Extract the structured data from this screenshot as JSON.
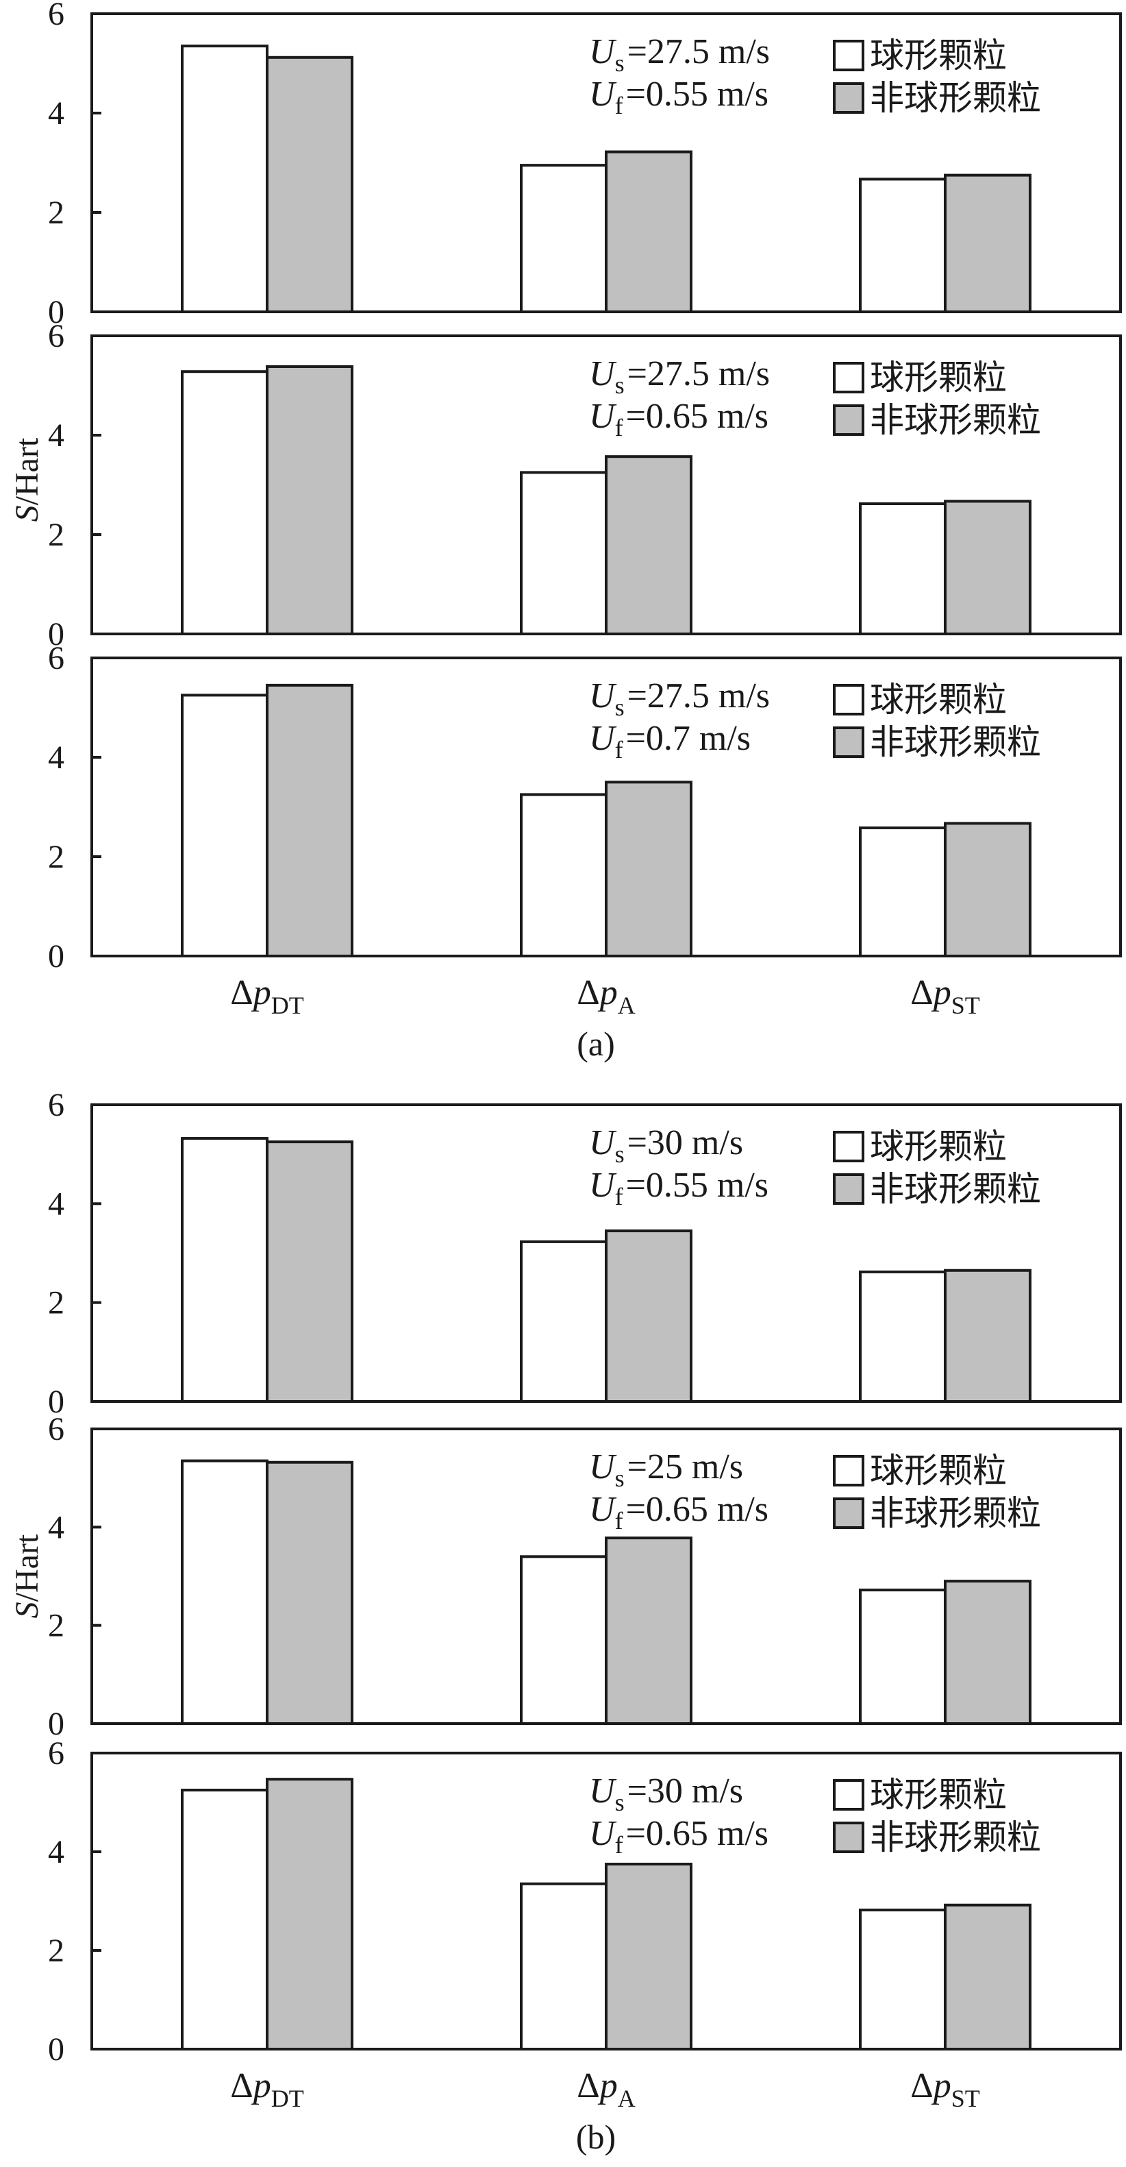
{
  "colors": {
    "spherical": "#ffffff",
    "nonspherical": "#c0c0c0",
    "line": "#1a1a1a"
  },
  "ylabel": "S/Hart",
  "groups": [
    {
      "label": "(a)",
      "charts": [
        {
          "type": "bar",
          "categories": [
            "Δp_DT",
            "Δp_A",
            "Δp_ST"
          ],
          "ylim": [
            0,
            6
          ],
          "yticks": [
            0,
            2,
            4,
            6
          ],
          "conditions": {
            "us": "=27.5 m/s",
            "uf": "=0.55 m/s"
          },
          "series": [
            {
              "name": "球形颗粒",
              "values": [
                5.35,
                2.95,
                2.67
              ]
            },
            {
              "name": "非球形颗粒",
              "values": [
                5.12,
                3.22,
                2.75
              ]
            }
          ]
        },
        {
          "type": "bar",
          "categories": [
            "Δp_DT",
            "Δp_A",
            "Δp_ST"
          ],
          "ylim": [
            0,
            6
          ],
          "yticks": [
            0,
            2,
            4,
            6
          ],
          "conditions": {
            "us": "=27.5 m/s",
            "uf": "=0.65 m/s"
          },
          "series": [
            {
              "name": "球形颗粒",
              "values": [
                5.28,
                3.25,
                2.62
              ]
            },
            {
              "name": "非球形颗粒",
              "values": [
                5.38,
                3.57,
                2.67
              ]
            }
          ]
        },
        {
          "type": "bar",
          "categories": [
            "Δp_DT",
            "Δp_A",
            "Δp_ST"
          ],
          "ylim": [
            0,
            6
          ],
          "yticks": [
            0,
            2,
            4,
            6
          ],
          "conditions": {
            "us": "=27.5 m/s",
            "uf": "=0.7 m/s"
          },
          "series": [
            {
              "name": "球形颗粒",
              "values": [
                5.25,
                3.25,
                2.58
              ]
            },
            {
              "name": "非球形颗粒",
              "values": [
                5.45,
                3.5,
                2.67
              ]
            }
          ]
        }
      ]
    },
    {
      "label": "(b)",
      "charts": [
        {
          "type": "bar",
          "categories": [
            "Δp_DT",
            "Δp_A",
            "Δp_ST"
          ],
          "ylim": [
            0,
            6
          ],
          "yticks": [
            0,
            2,
            4,
            6
          ],
          "conditions": {
            "us": "=30 m/s",
            "uf": "=0.55 m/s"
          },
          "series": [
            {
              "name": "球形颗粒",
              "values": [
                5.32,
                3.23,
                2.62
              ]
            },
            {
              "name": "非球形颗粒",
              "values": [
                5.25,
                3.45,
                2.65
              ]
            }
          ]
        },
        {
          "type": "bar",
          "categories": [
            "Δp_DT",
            "Δp_A",
            "Δp_ST"
          ],
          "ylim": [
            0,
            6
          ],
          "yticks": [
            0,
            2,
            4,
            6
          ],
          "conditions": {
            "us": "=25 m/s",
            "uf": "=0.65 m/s"
          },
          "series": [
            {
              "name": "球形颗粒",
              "values": [
                5.35,
                3.4,
                2.72
              ]
            },
            {
              "name": "非球形颗粒",
              "values": [
                5.32,
                3.78,
                2.9
              ]
            }
          ]
        },
        {
          "type": "bar",
          "categories": [
            "Δp_DT",
            "Δp_A",
            "Δp_ST"
          ],
          "ylim": [
            0,
            6
          ],
          "yticks": [
            0,
            2,
            4,
            6
          ],
          "conditions": {
            "us": "=30 m/s",
            "uf": "=0.65 m/s"
          },
          "series": [
            {
              "name": "球形颗粒",
              "values": [
                5.25,
                3.35,
                2.82
              ]
            },
            {
              "name": "非球形颗粒",
              "values": [
                5.47,
                3.75,
                2.92
              ]
            }
          ]
        }
      ]
    }
  ]
}
